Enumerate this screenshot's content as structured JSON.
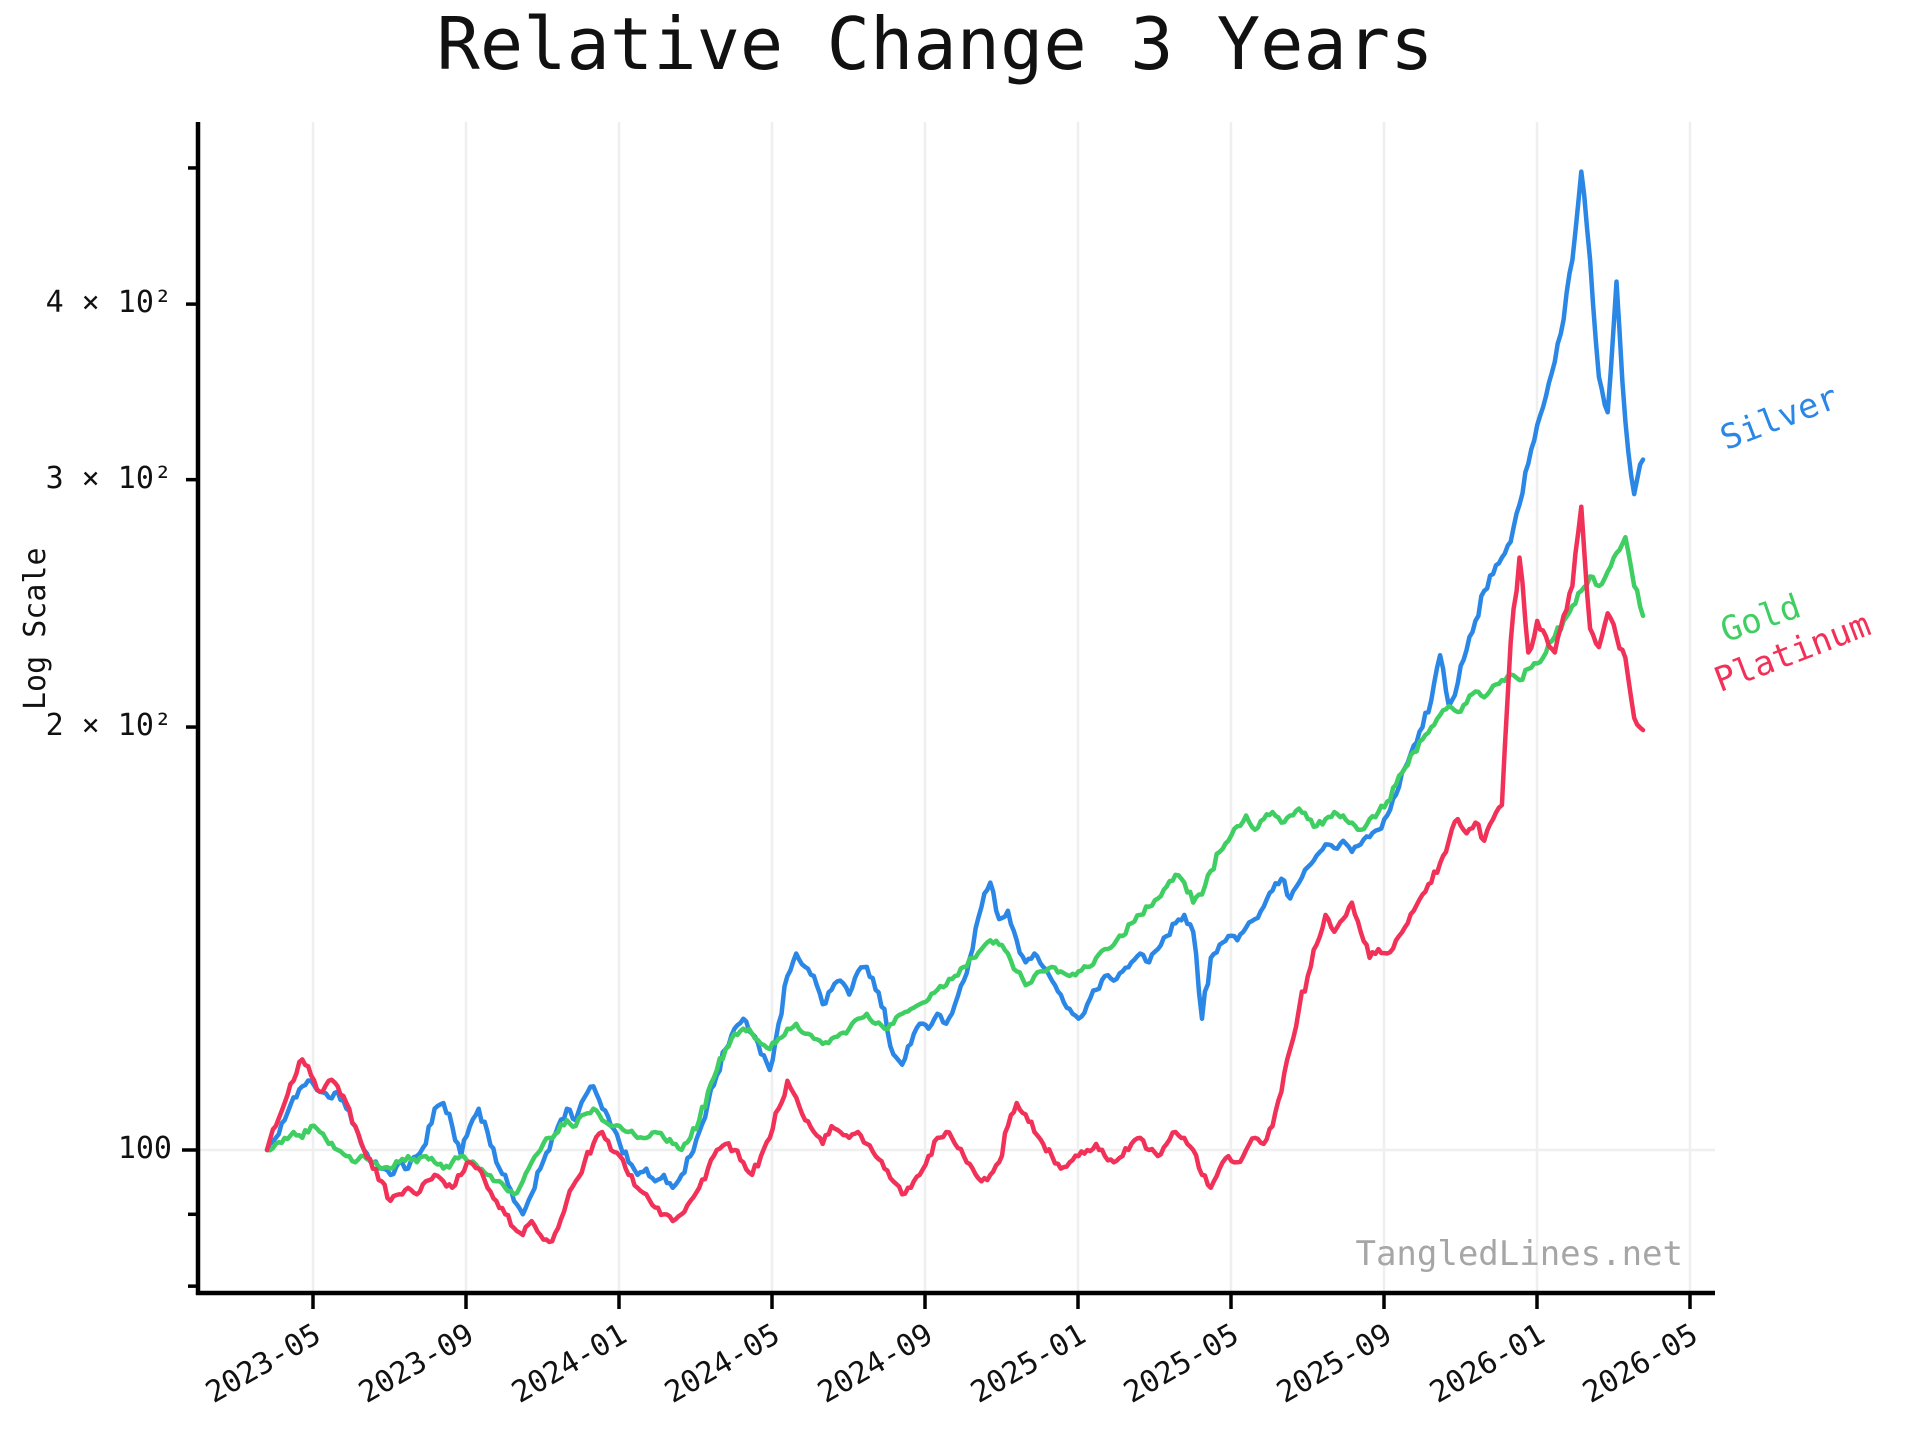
{
  "title": "Relative Change 3 Years",
  "ylabel": "Log Scale",
  "watermark": "TangledLines.net",
  "colors": {
    "silver": "#2b87e6",
    "gold": "#3fce62",
    "platinum": "#f13158",
    "grid": "#efefef",
    "axis": "#000000",
    "watermark": "#a6a6a6"
  },
  "chart_data": {
    "type": "line",
    "scale": "log-y",
    "title": "Relative Change 3 Years",
    "xlabel": "",
    "ylabel": "Log Scale",
    "ylim": [
      79,
      540
    ],
    "baseline_value": 100,
    "interval": "weekly",
    "x_range": [
      "2023-03-27",
      "2026-03-23"
    ],
    "x_tick_labels": [
      "2023-05",
      "2023-09",
      "2024-01",
      "2024-05",
      "2024-09",
      "2025-01",
      "2025-05",
      "2025-09",
      "2026-01",
      "2026-05"
    ],
    "y_tick_labels": [
      {
        "value": 100,
        "label": "100",
        "major": true
      },
      {
        "value": 200,
        "label": "2 × 10²",
        "major": false
      },
      {
        "value": 300,
        "label": "3 × 10²",
        "major": false
      },
      {
        "value": 400,
        "label": "4 × 10²",
        "major": false
      }
    ],
    "y_minor_ticks": [
      80,
      90,
      500
    ],
    "grid": {
      "vertical": true,
      "horizontal_at": [
        100
      ]
    },
    "legend_position": "right-inline-labels",
    "series": [
      {
        "name": "Silver",
        "color": "#2b87e6",
        "values": [
          100,
          102,
          105,
          109,
          111,
          112,
          110,
          109,
          110,
          107,
          104,
          100,
          98,
          97,
          96,
          98,
          97,
          99,
          101,
          107,
          108,
          104,
          99,
          104,
          107,
          103,
          98,
          96,
          92,
          90,
          93,
          97,
          100,
          104,
          107,
          105,
          109,
          111,
          107,
          104,
          101,
          98,
          96,
          97,
          95,
          96,
          94,
          96,
          99,
          103,
          108,
          113,
          118,
          122,
          124,
          121,
          117,
          114,
          123,
          133,
          138,
          135,
          133,
          127,
          130,
          132,
          129,
          134,
          135,
          130,
          126,
          117,
          115,
          119,
          123,
          122,
          125,
          123,
          127,
          132,
          139,
          149,
          155,
          146,
          148,
          141,
          136,
          138,
          135,
          132,
          129,
          126,
          124,
          127,
          130,
          133,
          132,
          134,
          136,
          138,
          136,
          139,
          142,
          145,
          147,
          143,
          124,
          137,
          140,
          142,
          141,
          144,
          146,
          149,
          153,
          156,
          151,
          155,
          159,
          162,
          165,
          164,
          166,
          163,
          165,
          167,
          169,
          173,
          179,
          187,
          194,
          200,
          209,
          225,
          207,
          215,
          227,
          238,
          250,
          257,
          264,
          271,
          288,
          308,
          328,
          344,
          364,
          390,
          430,
          497,
          430,
          355,
          335,
          415,
          330,
          293,
          310
        ]
      },
      {
        "name": "Gold",
        "color": "#3fce62",
        "values": [
          100,
          101,
          102,
          103,
          102,
          104,
          103,
          101,
          100,
          99,
          98,
          99,
          98,
          97,
          97,
          98,
          99,
          98,
          99,
          98,
          97,
          98,
          99,
          98,
          97,
          96,
          95,
          94,
          93,
          95,
          98,
          100,
          102,
          103,
          105,
          104,
          106,
          107,
          105,
          104,
          104,
          103,
          102,
          102,
          103,
          102,
          101,
          100,
          102,
          105,
          110,
          114,
          118,
          121,
          122,
          121,
          119,
          118,
          120,
          122,
          123,
          121,
          120,
          119,
          120,
          121,
          122,
          124,
          125,
          123,
          122,
          123,
          125,
          126,
          127,
          128,
          130,
          131,
          133,
          135,
          137,
          139,
          141,
          140,
          138,
          134,
          131,
          133,
          134,
          135,
          134,
          133,
          134,
          135,
          137,
          139,
          140,
          142,
          145,
          147,
          149,
          151,
          154,
          157,
          155,
          150,
          152,
          158,
          163,
          166,
          170,
          173,
          169,
          172,
          174,
          171,
          173,
          175,
          172,
          170,
          172,
          174,
          173,
          171,
          169,
          172,
          174,
          177,
          182,
          187,
          192,
          196,
          200,
          204,
          207,
          205,
          208,
          212,
          210,
          214,
          216,
          218,
          216,
          220,
          222,
          226,
          232,
          238,
          244,
          250,
          256,
          252,
          258,
          266,
          273,
          252,
          240
        ]
      },
      {
        "name": "Platinum",
        "color": "#f13158",
        "values": [
          100,
          104,
          108,
          112,
          116,
          113,
          110,
          112,
          111,
          108,
          104,
          100,
          97,
          95,
          92,
          93,
          94,
          93,
          95,
          96,
          95,
          94,
          96,
          98,
          97,
          94,
          92,
          90,
          88,
          87,
          89,
          87,
          86,
          88,
          92,
          95,
          98,
          101,
          103,
          100,
          99,
          96,
          94,
          93,
          91,
          90,
          89,
          90,
          92,
          94,
          97,
          100,
          101,
          100,
          98,
          96,
          99,
          102,
          107,
          112,
          109,
          105,
          103,
          101,
          104,
          103,
          102,
          103,
          101,
          99,
          97,
          95,
          93,
          94,
          96,
          99,
          102,
          103,
          101,
          99,
          97,
          95,
          96,
          98,
          104,
          108,
          106,
          103,
          101,
          99,
          97,
          98,
          99,
          100,
          101,
          99,
          98,
          99,
          101,
          102,
          100,
          99,
          101,
          103,
          102,
          100,
          96,
          94,
          97,
          99,
          98,
          100,
          102,
          101,
          104,
          110,
          118,
          126,
          133,
          140,
          147,
          143,
          146,
          150,
          143,
          137,
          139,
          138,
          141,
          144,
          148,
          152,
          155,
          160,
          166,
          172,
          168,
          171,
          166,
          172,
          176,
          230,
          264,
          226,
          238,
          232,
          226,
          240,
          252,
          287,
          235,
          228,
          241,
          232,
          224,
          203,
          199
        ]
      }
    ]
  }
}
